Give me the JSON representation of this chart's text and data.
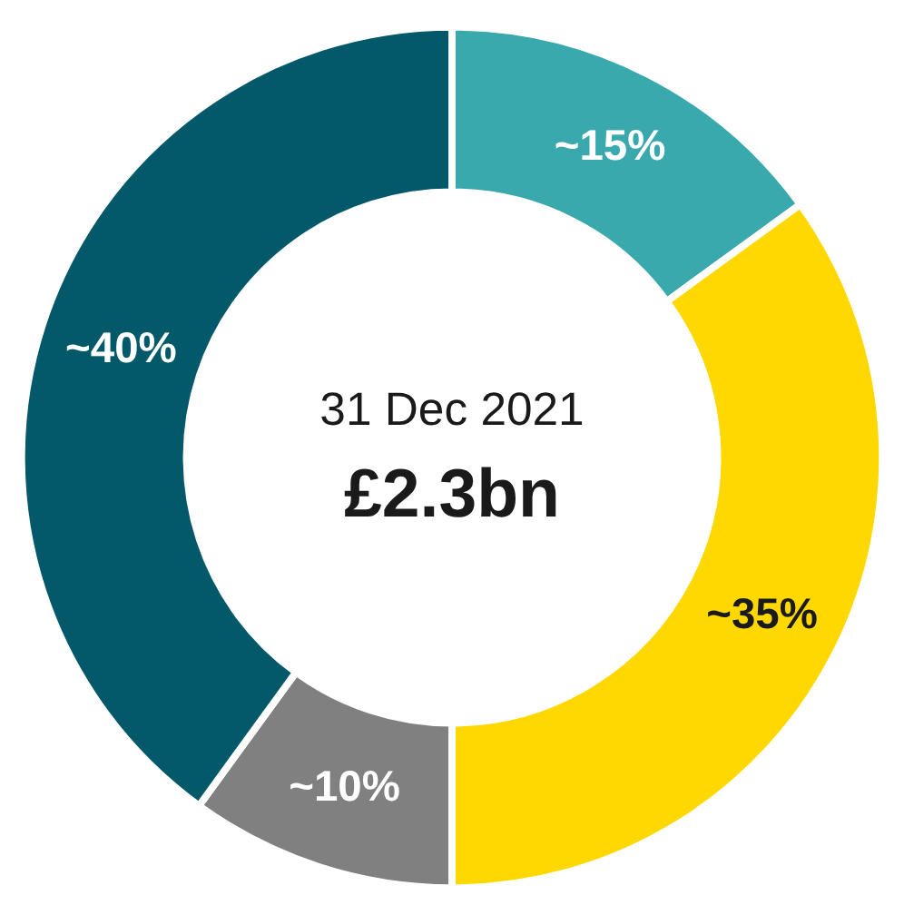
{
  "chart_data": {
    "type": "donut",
    "categories": [
      null,
      null,
      null,
      null
    ],
    "values": [
      15,
      35,
      10,
      40
    ],
    "colors": [
      "#3aa9ae",
      "#fed800",
      "#808080",
      "#03596a"
    ],
    "value_labels": [
      "~15%",
      "~35%",
      "~10%",
      "~40%"
    ],
    "annotations": [
      "31 Dec 2021",
      "£2.3bn"
    ],
    "legend": false
  }
}
